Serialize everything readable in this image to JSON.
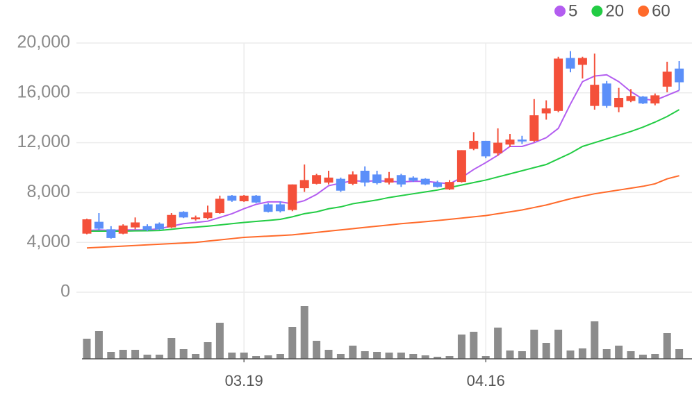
{
  "chart_data": {
    "type": "candlestick",
    "categories": [
      null,
      null,
      null,
      null,
      null,
      null,
      null,
      null,
      null,
      null,
      null,
      null,
      null,
      "03.19",
      null,
      null,
      null,
      null,
      null,
      null,
      null,
      null,
      null,
      null,
      null,
      null,
      null,
      null,
      null,
      null,
      null,
      null,
      null,
      "04.16",
      null,
      null,
      null,
      null,
      null,
      null,
      null,
      null,
      null,
      null,
      null,
      null,
      null,
      null,
      null,
      null
    ],
    "open": [
      4700,
      5650,
      5050,
      4700,
      5200,
      5300,
      5500,
      5200,
      6450,
      5850,
      5950,
      6350,
      7750,
      7300,
      7750,
      7050,
      7050,
      6600,
      8350,
      8700,
      8800,
      9100,
      8700,
      9750,
      9450,
      8800,
      9400,
      9200,
      9100,
      8800,
      8250,
      8850,
      11500,
      12150,
      11150,
      11850,
      12250,
      12150,
      14350,
      14550,
      18800,
      18250,
      14950,
      16750,
      14850,
      15350,
      15700,
      15150,
      16500,
      17950
    ],
    "high": [
      5900,
      6350,
      5300,
      5450,
      6000,
      5450,
      5600,
      6350,
      6500,
      6150,
      6950,
      7750,
      7800,
      7800,
      7800,
      7150,
      7300,
      8650,
      10250,
      9500,
      9750,
      9200,
      9700,
      10100,
      9750,
      9650,
      9500,
      9300,
      9150,
      8950,
      9000,
      11400,
      12850,
      12150,
      13150,
      12700,
      12550,
      15500,
      15400,
      18900,
      19350,
      18900,
      19150,
      16950,
      16400,
      16300,
      15750,
      15950,
      18500,
      18550
    ],
    "low": [
      4650,
      5000,
      4300,
      4650,
      5050,
      4900,
      5000,
      5150,
      5950,
      5750,
      5850,
      6300,
      7250,
      7250,
      7150,
      6400,
      6400,
      6500,
      8050,
      8650,
      8650,
      8050,
      8600,
      8500,
      8650,
      8650,
      8450,
      8850,
      8600,
      8400,
      8200,
      8800,
      11400,
      10750,
      10950,
      11650,
      11900,
      12050,
      13850,
      14450,
      17650,
      17150,
      14650,
      14800,
      14450,
      15250,
      15100,
      15000,
      16050,
      16200
    ],
    "close": [
      5850,
      5100,
      4350,
      5350,
      5600,
      5000,
      5050,
      6200,
      6000,
      6000,
      6400,
      7500,
      7350,
      7750,
      7200,
      6450,
      6500,
      8650,
      9000,
      9400,
      9200,
      8150,
      9450,
      8800,
      8750,
      9150,
      8650,
      8950,
      8650,
      8450,
      8850,
      11400,
      12150,
      10900,
      12000,
      12250,
      12100,
      14200,
      14750,
      18750,
      17950,
      18800,
      16650,
      14950,
      15600,
      15750,
      15150,
      15800,
      17700,
      16850
    ],
    "up_color": "#f4503a",
    "down_color": "#5b8ff9",
    "series": [
      {
        "name": "5",
        "color": "#b35df0",
        "values": [
          4950,
          5000,
          4950,
          5000,
          5000,
          5000,
          5100,
          5300,
          5500,
          5600,
          5700,
          6000,
          6300,
          6700,
          7050,
          7250,
          7250,
          7100,
          7350,
          7850,
          8550,
          8750,
          8950,
          8900,
          8950,
          8900,
          8850,
          8900,
          8900,
          8800,
          8700,
          9200,
          9850,
          10400,
          11000,
          11700,
          11700,
          12000,
          12400,
          13150,
          15100,
          16900,
          17350,
          17450,
          16900,
          16100,
          15500,
          15400,
          15800,
          16200
        ]
      },
      {
        "name": "20",
        "color": "#22cc44",
        "values": [
          4900,
          4900,
          4900,
          4900,
          4920,
          4930,
          4950,
          5050,
          5150,
          5220,
          5300,
          5400,
          5500,
          5600,
          5680,
          5760,
          5850,
          6050,
          6300,
          6450,
          6700,
          6850,
          7100,
          7250,
          7400,
          7600,
          7750,
          7900,
          8050,
          8200,
          8400,
          8600,
          8800,
          9000,
          9250,
          9500,
          9750,
          10000,
          10250,
          10700,
          11150,
          11700,
          12000,
          12300,
          12600,
          12900,
          13250,
          13650,
          14100,
          14650
        ]
      },
      {
        "name": "60",
        "color": "#ff6a2a",
        "values": [
          3550,
          3600,
          3650,
          3700,
          3750,
          3800,
          3850,
          3900,
          3950,
          4000,
          4100,
          4200,
          4300,
          4400,
          4450,
          4500,
          4550,
          4600,
          4700,
          4800,
          4900,
          5000,
          5100,
          5200,
          5300,
          5400,
          5500,
          5580,
          5660,
          5750,
          5850,
          5950,
          6050,
          6150,
          6300,
          6450,
          6600,
          6800,
          7000,
          7250,
          7500,
          7700,
          7900,
          8050,
          8200,
          8350,
          8500,
          8700,
          9100,
          9350
        ]
      }
    ],
    "volume": {
      "color": "#8c8c8c",
      "values": [
        29,
        40,
        10,
        13,
        13,
        6,
        6,
        30,
        14,
        7,
        24,
        52,
        9,
        9,
        4,
        5,
        7,
        46,
        76,
        26,
        13,
        7,
        19,
        11,
        10,
        9,
        9,
        7,
        5,
        3,
        4,
        35,
        39,
        4,
        45,
        12,
        11,
        42,
        23,
        42,
        12,
        15,
        54,
        14,
        19,
        11,
        6,
        7,
        37,
        14
      ]
    },
    "ylim": [
      0,
      20000
    ],
    "yticks": [
      0,
      {
        "value": 4000,
        "label": "4,000"
      },
      {
        "value": 8000,
        "label": "8,000"
      },
      {
        "value": 12000,
        "label": "12,000"
      },
      {
        "value": 16000,
        "label": "16,000"
      },
      {
        "value": 20000,
        "label": "20,000"
      }
    ],
    "grid": true,
    "legend": "top-right"
  }
}
